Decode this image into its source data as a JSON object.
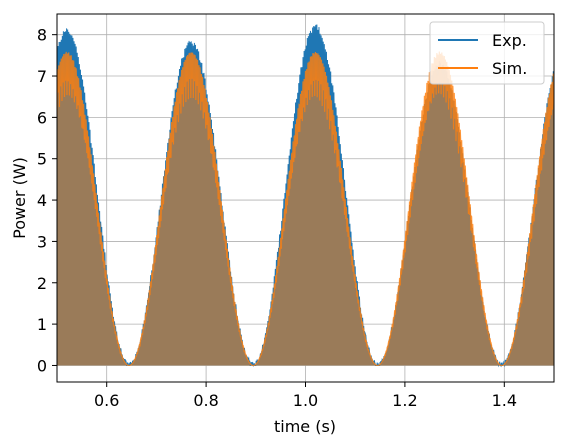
{
  "chart_data": {
    "type": "line",
    "xlabel": "time (s)",
    "ylabel": "Power (W)",
    "xlim": [
      0.5,
      1.5
    ],
    "ylim": [
      -0.4,
      8.5
    ],
    "xticks": [
      "0.6",
      "0.8",
      "1.0",
      "1.2",
      "1.4"
    ],
    "yticks": [
      "0",
      "1",
      "2",
      "3",
      "4",
      "5",
      "6",
      "7",
      "8"
    ],
    "grid": true,
    "legend_position": "top-right",
    "period_s": 0.25,
    "first_peak_s": 0.52,
    "series": [
      {
        "name": "Exp.",
        "color": "#1f77b4",
        "peak_values": [
          8.1,
          7.8,
          8.2,
          7.3,
          7.6
        ]
      },
      {
        "name": "Sim.",
        "color": "#ff7f0e",
        "peak_values": [
          7.6,
          7.6,
          7.6,
          7.6,
          7.6
        ]
      }
    ]
  }
}
